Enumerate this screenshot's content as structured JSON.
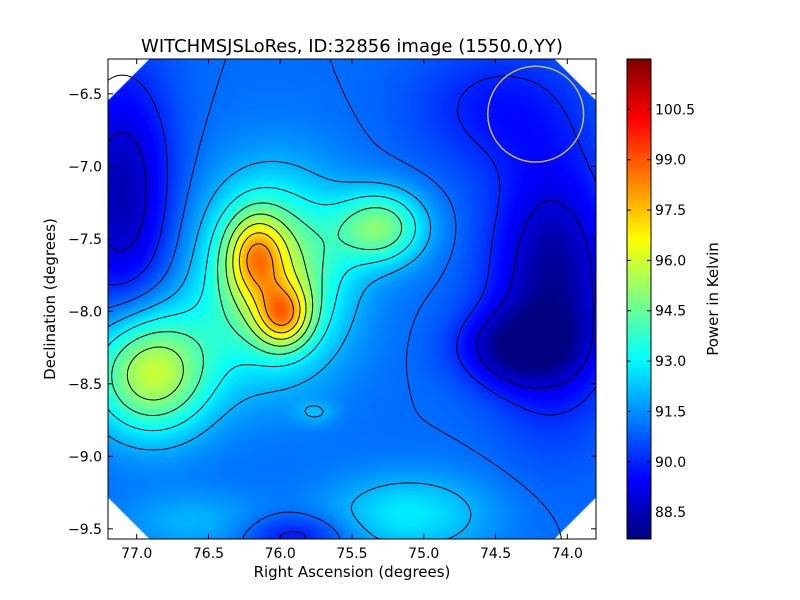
{
  "chart_data": {
    "type": "heatmap",
    "title": "WITCHMSJSLoRes, ID:32856 image (1550.0,YY)",
    "xlabel": "Right Ascension (degrees)",
    "ylabel": "Declination (degrees)",
    "colorbar_label": "Power in Kelvin",
    "xlim": [
      77.2,
      73.8
    ],
    "ylim": [
      -9.57,
      -6.26
    ],
    "clim": [
      87.7,
      102.0
    ],
    "x_ticks": [
      77.0,
      76.5,
      76.0,
      75.5,
      75.0,
      74.5,
      74.0
    ],
    "x_tick_labels": [
      "77.0",
      "76.5",
      "76.0",
      "75.5",
      "75.0",
      "74.5",
      "74.0"
    ],
    "y_ticks": [
      -6.5,
      -7.0,
      -7.5,
      -8.0,
      -8.5,
      -9.0,
      -9.5
    ],
    "y_tick_labels": [
      "−6.5",
      "−7.0",
      "−7.5",
      "−8.0",
      "−8.5",
      "−9.0",
      "−9.5"
    ],
    "colorbar_ticks": [
      88.5,
      90.0,
      91.5,
      93.0,
      94.5,
      96.0,
      97.5,
      99.0,
      100.5
    ],
    "colorbar_tick_labels": [
      "88.5",
      "90.0",
      "91.5",
      "93.0",
      "94.5",
      "96.0",
      "97.5",
      "99.0",
      "100.5"
    ],
    "colormap": "jet",
    "background_level": 91.0,
    "peaks": [
      {
        "ra": 75.98,
        "dec": -8.03,
        "amplitude": 4.0,
        "sigma_ra": 0.13,
        "sigma_dec": 0.15
      },
      {
        "ra": 76.17,
        "dec": -7.62,
        "amplitude": 3.5,
        "sigma_ra": 0.14,
        "sigma_dec": 0.2
      },
      {
        "ra": 76.05,
        "dec": -7.75,
        "amplitude": 4.5,
        "sigma_ra": 0.35,
        "sigma_dec": 0.45
      },
      {
        "ra": 75.3,
        "dec": -7.42,
        "amplitude": 3.6,
        "sigma_ra": 0.22,
        "sigma_dec": 0.18
      },
      {
        "ra": 76.9,
        "dec": -8.42,
        "amplitude": 5.0,
        "sigma_ra": 0.3,
        "sigma_dec": 0.3
      },
      {
        "ra": 75.75,
        "dec": -8.7,
        "amplitude": 0.8,
        "sigma_ra": 0.1,
        "sigma_dec": 0.06
      },
      {
        "ra": 75.1,
        "dec": -9.4,
        "amplitude": 1.8,
        "sigma_ra": 0.4,
        "sigma_dec": 0.2
      },
      {
        "ra": 76.6,
        "dec": -9.45,
        "amplitude": 1.0,
        "sigma_ra": 0.35,
        "sigma_dec": 0.15
      },
      {
        "ra": 74.1,
        "dec": -7.8,
        "amplitude": -3.0,
        "sigma_ra": 0.3,
        "sigma_dec": 0.6
      },
      {
        "ra": 74.35,
        "dec": -8.25,
        "amplitude": -2.5,
        "sigma_ra": 0.28,
        "sigma_dec": 0.18
      },
      {
        "ra": 77.1,
        "dec": -7.2,
        "amplitude": -2.6,
        "sigma_ra": 0.25,
        "sigma_dec": 0.6
      },
      {
        "ra": 75.9,
        "dec": -9.55,
        "amplitude": -1.4,
        "sigma_ra": 0.25,
        "sigma_dec": 0.1
      },
      {
        "ra": 74.5,
        "dec": -6.6,
        "amplitude": -1.2,
        "sigma_ra": 0.4,
        "sigma_dec": 0.3
      }
    ],
    "contour_levels": [
      89.0,
      90.0,
      91.0,
      92.0,
      93.0,
      94.0,
      95.0,
      96.0,
      97.0,
      98.0,
      99.0,
      100.0,
      101.0
    ],
    "beam_circle": {
      "ra": 74.22,
      "dec": -6.64,
      "radius_deg": 0.33,
      "color": "#c8b84a"
    },
    "colors": {
      "contour": "#000000",
      "frame": "#000000",
      "blank_corner": "#ffffff"
    }
  }
}
